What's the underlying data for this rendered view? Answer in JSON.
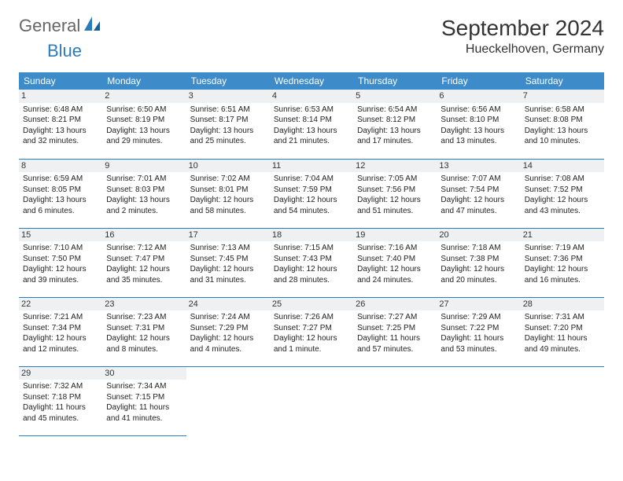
{
  "logo": {
    "text1": "General",
    "text2": "Blue"
  },
  "title": "September 2024",
  "location": "Hueckelhoven, Germany",
  "colors": {
    "header_bg": "#3d8bc8",
    "header_fg": "#ffffff",
    "border": "#2b7bbf",
    "daynum_bg": "#eef0f2",
    "logo_gray": "#666666",
    "logo_blue": "#2b7bbf",
    "page_bg": "#ffffff",
    "text": "#333333"
  },
  "weekdays": [
    "Sunday",
    "Monday",
    "Tuesday",
    "Wednesday",
    "Thursday",
    "Friday",
    "Saturday"
  ],
  "weeks": [
    [
      {
        "n": "1",
        "sr": "Sunrise: 6:48 AM",
        "ss": "Sunset: 8:21 PM",
        "d1": "Daylight: 13 hours",
        "d2": "and 32 minutes."
      },
      {
        "n": "2",
        "sr": "Sunrise: 6:50 AM",
        "ss": "Sunset: 8:19 PM",
        "d1": "Daylight: 13 hours",
        "d2": "and 29 minutes."
      },
      {
        "n": "3",
        "sr": "Sunrise: 6:51 AM",
        "ss": "Sunset: 8:17 PM",
        "d1": "Daylight: 13 hours",
        "d2": "and 25 minutes."
      },
      {
        "n": "4",
        "sr": "Sunrise: 6:53 AM",
        "ss": "Sunset: 8:14 PM",
        "d1": "Daylight: 13 hours",
        "d2": "and 21 minutes."
      },
      {
        "n": "5",
        "sr": "Sunrise: 6:54 AM",
        "ss": "Sunset: 8:12 PM",
        "d1": "Daylight: 13 hours",
        "d2": "and 17 minutes."
      },
      {
        "n": "6",
        "sr": "Sunrise: 6:56 AM",
        "ss": "Sunset: 8:10 PM",
        "d1": "Daylight: 13 hours",
        "d2": "and 13 minutes."
      },
      {
        "n": "7",
        "sr": "Sunrise: 6:58 AM",
        "ss": "Sunset: 8:08 PM",
        "d1": "Daylight: 13 hours",
        "d2": "and 10 minutes."
      }
    ],
    [
      {
        "n": "8",
        "sr": "Sunrise: 6:59 AM",
        "ss": "Sunset: 8:05 PM",
        "d1": "Daylight: 13 hours",
        "d2": "and 6 minutes."
      },
      {
        "n": "9",
        "sr": "Sunrise: 7:01 AM",
        "ss": "Sunset: 8:03 PM",
        "d1": "Daylight: 13 hours",
        "d2": "and 2 minutes."
      },
      {
        "n": "10",
        "sr": "Sunrise: 7:02 AM",
        "ss": "Sunset: 8:01 PM",
        "d1": "Daylight: 12 hours",
        "d2": "and 58 minutes."
      },
      {
        "n": "11",
        "sr": "Sunrise: 7:04 AM",
        "ss": "Sunset: 7:59 PM",
        "d1": "Daylight: 12 hours",
        "d2": "and 54 minutes."
      },
      {
        "n": "12",
        "sr": "Sunrise: 7:05 AM",
        "ss": "Sunset: 7:56 PM",
        "d1": "Daylight: 12 hours",
        "d2": "and 51 minutes."
      },
      {
        "n": "13",
        "sr": "Sunrise: 7:07 AM",
        "ss": "Sunset: 7:54 PM",
        "d1": "Daylight: 12 hours",
        "d2": "and 47 minutes."
      },
      {
        "n": "14",
        "sr": "Sunrise: 7:08 AM",
        "ss": "Sunset: 7:52 PM",
        "d1": "Daylight: 12 hours",
        "d2": "and 43 minutes."
      }
    ],
    [
      {
        "n": "15",
        "sr": "Sunrise: 7:10 AM",
        "ss": "Sunset: 7:50 PM",
        "d1": "Daylight: 12 hours",
        "d2": "and 39 minutes."
      },
      {
        "n": "16",
        "sr": "Sunrise: 7:12 AM",
        "ss": "Sunset: 7:47 PM",
        "d1": "Daylight: 12 hours",
        "d2": "and 35 minutes."
      },
      {
        "n": "17",
        "sr": "Sunrise: 7:13 AM",
        "ss": "Sunset: 7:45 PM",
        "d1": "Daylight: 12 hours",
        "d2": "and 31 minutes."
      },
      {
        "n": "18",
        "sr": "Sunrise: 7:15 AM",
        "ss": "Sunset: 7:43 PM",
        "d1": "Daylight: 12 hours",
        "d2": "and 28 minutes."
      },
      {
        "n": "19",
        "sr": "Sunrise: 7:16 AM",
        "ss": "Sunset: 7:40 PM",
        "d1": "Daylight: 12 hours",
        "d2": "and 24 minutes."
      },
      {
        "n": "20",
        "sr": "Sunrise: 7:18 AM",
        "ss": "Sunset: 7:38 PM",
        "d1": "Daylight: 12 hours",
        "d2": "and 20 minutes."
      },
      {
        "n": "21",
        "sr": "Sunrise: 7:19 AM",
        "ss": "Sunset: 7:36 PM",
        "d1": "Daylight: 12 hours",
        "d2": "and 16 minutes."
      }
    ],
    [
      {
        "n": "22",
        "sr": "Sunrise: 7:21 AM",
        "ss": "Sunset: 7:34 PM",
        "d1": "Daylight: 12 hours",
        "d2": "and 12 minutes."
      },
      {
        "n": "23",
        "sr": "Sunrise: 7:23 AM",
        "ss": "Sunset: 7:31 PM",
        "d1": "Daylight: 12 hours",
        "d2": "and 8 minutes."
      },
      {
        "n": "24",
        "sr": "Sunrise: 7:24 AM",
        "ss": "Sunset: 7:29 PM",
        "d1": "Daylight: 12 hours",
        "d2": "and 4 minutes."
      },
      {
        "n": "25",
        "sr": "Sunrise: 7:26 AM",
        "ss": "Sunset: 7:27 PM",
        "d1": "Daylight: 12 hours",
        "d2": "and 1 minute."
      },
      {
        "n": "26",
        "sr": "Sunrise: 7:27 AM",
        "ss": "Sunset: 7:25 PM",
        "d1": "Daylight: 11 hours",
        "d2": "and 57 minutes."
      },
      {
        "n": "27",
        "sr": "Sunrise: 7:29 AM",
        "ss": "Sunset: 7:22 PM",
        "d1": "Daylight: 11 hours",
        "d2": "and 53 minutes."
      },
      {
        "n": "28",
        "sr": "Sunrise: 7:31 AM",
        "ss": "Sunset: 7:20 PM",
        "d1": "Daylight: 11 hours",
        "d2": "and 49 minutes."
      }
    ],
    [
      {
        "n": "29",
        "sr": "Sunrise: 7:32 AM",
        "ss": "Sunset: 7:18 PM",
        "d1": "Daylight: 11 hours",
        "d2": "and 45 minutes."
      },
      {
        "n": "30",
        "sr": "Sunrise: 7:34 AM",
        "ss": "Sunset: 7:15 PM",
        "d1": "Daylight: 11 hours",
        "d2": "and 41 minutes."
      },
      null,
      null,
      null,
      null,
      null
    ]
  ]
}
